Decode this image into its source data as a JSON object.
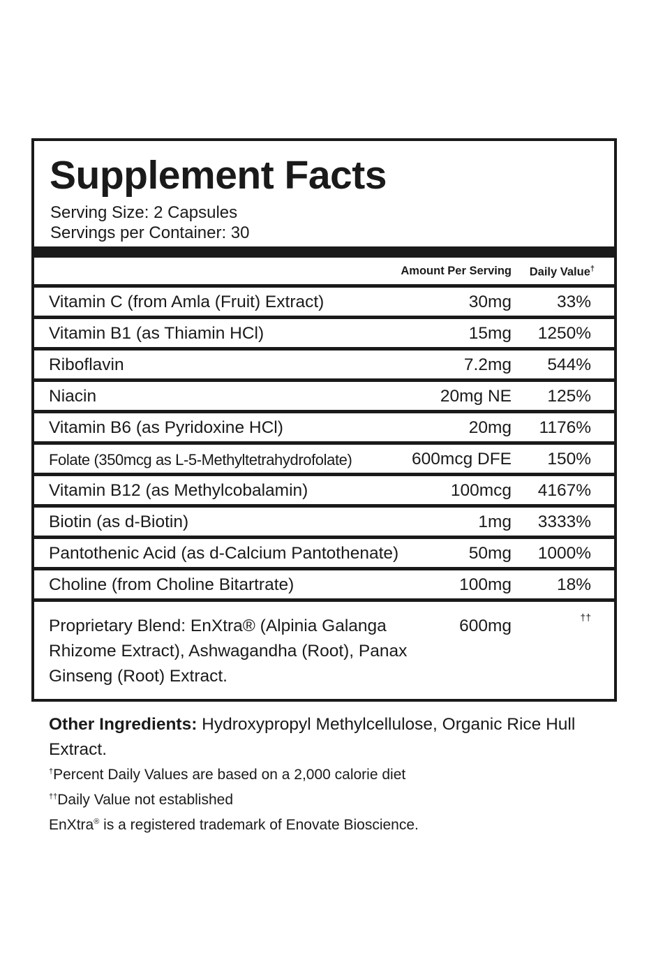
{
  "title": "Supplement Facts",
  "serving_size": "Serving Size: 2 Capsules",
  "servings_per_container": "Servings per Container: 30",
  "header": {
    "amount": "Amount Per Serving",
    "daily_value": "Daily Value",
    "dv_mark": "†"
  },
  "rows": [
    {
      "name": "Vitamin C (from Amla (Fruit) Extract)",
      "amount": "30mg",
      "dv": "33%"
    },
    {
      "name": "Vitamin B1 (as Thiamin HCl)",
      "amount": "15mg",
      "dv": "1250%"
    },
    {
      "name": "Riboflavin",
      "amount": "7.2mg",
      "dv": "544%"
    },
    {
      "name": "Niacin",
      "amount": "20mg NE",
      "dv": "125%"
    },
    {
      "name": "Vitamin B6 (as Pyridoxine HCl)",
      "amount": "20mg",
      "dv": "1176%"
    },
    {
      "name": "Folate (350mcg as L-5-Methyltetrahydrofolate)",
      "amount": "600mcg DFE",
      "dv": "150%"
    },
    {
      "name": "Vitamin B12 (as Methylcobalamin)",
      "amount": "100mcg",
      "dv": "4167%"
    },
    {
      "name": "Biotin (as d-Biotin)",
      "amount": "1mg",
      "dv": "3333%"
    },
    {
      "name": "Pantothenic Acid (as d-Calcium Pantothenate)",
      "amount": "50mg",
      "dv": "1000%"
    },
    {
      "name": "Choline (from Choline Bitartrate)",
      "amount": "100mg",
      "dv": "18%"
    }
  ],
  "blend": {
    "name": "Proprietary Blend: EnXtra® (Alpinia Galanga Rhizome Extract), Ashwagandha (Root), Panax Ginseng (Root) Extract.",
    "amount": "600mg",
    "dv": "††"
  },
  "footer": {
    "other_label": "Other Ingredients:",
    "other_text": " Hydroxypropyl Methylcellulose, Organic Rice Hull Extract.",
    "note1_mark": "†",
    "note1": "Percent Daily Values are based on a 2,000 calorie diet",
    "note2_mark": "††",
    "note2": "Daily Value not established",
    "trademark_brand": "EnXtra",
    "trademark_mark": "®",
    "trademark_text": " is a registered trademark of Enovate Bioscience."
  }
}
